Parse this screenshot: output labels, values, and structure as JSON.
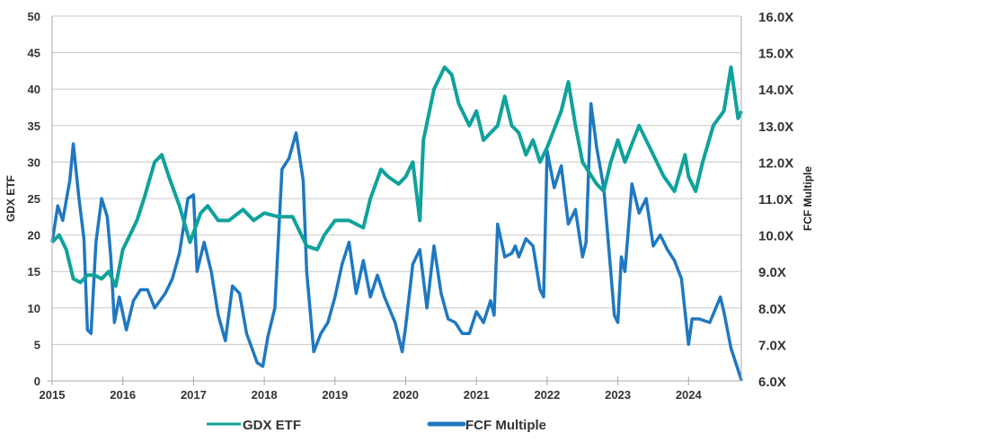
{
  "chart_data": {
    "type": "line",
    "title": "",
    "xlabel": "",
    "ylabel": "GDX ETF",
    "y2label": "FCF Multiple",
    "xlim": [
      2015,
      2024.8
    ],
    "ylim": [
      0,
      50
    ],
    "y2lim": [
      6,
      16
    ],
    "x_ticks": [
      "2015",
      "2016",
      "2017",
      "2018",
      "2019",
      "2020",
      "2021",
      "2022",
      "2023",
      "2024"
    ],
    "y_ticks": [
      "0",
      "5",
      "10",
      "15",
      "20",
      "25",
      "30",
      "35",
      "40",
      "45",
      "50"
    ],
    "y2_ticks": [
      "6.0X",
      "7.0X",
      "8.0X",
      "9.0X",
      "10.0X",
      "11.0X",
      "12.0X",
      "13.0X",
      "14.0X",
      "15.0X",
      "16.0X"
    ],
    "grid": true,
    "legend_position": "bottom",
    "series": [
      {
        "name": "GDX ETF",
        "axis": "left",
        "color": "#0fa29b",
        "x": [
          2015.0,
          2015.1,
          2015.2,
          2015.3,
          2015.4,
          2015.5,
          2015.6,
          2015.7,
          2015.8,
          2015.9,
          2016.0,
          2016.1,
          2016.2,
          2016.3,
          2016.45,
          2016.55,
          2016.65,
          2016.8,
          2016.95,
          2017.1,
          2017.2,
          2017.35,
          2017.5,
          2017.7,
          2017.85,
          2018.0,
          2018.2,
          2018.4,
          2018.6,
          2018.75,
          2018.85,
          2019.0,
          2019.2,
          2019.4,
          2019.5,
          2019.65,
          2019.75,
          2019.9,
          2020.0,
          2020.1,
          2020.2,
          2020.25,
          2020.4,
          2020.55,
          2020.65,
          2020.75,
          2020.9,
          2021.0,
          2021.1,
          2021.3,
          2021.4,
          2021.5,
          2021.6,
          2021.7,
          2021.8,
          2021.9,
          2022.0,
          2022.2,
          2022.3,
          2022.4,
          2022.5,
          2022.7,
          2022.8,
          2022.9,
          2023.0,
          2023.1,
          2023.3,
          2023.5,
          2023.65,
          2023.8,
          2023.95,
          2024.0,
          2024.1,
          2024.2,
          2024.35,
          2024.5,
          2024.6,
          2024.7,
          2024.75
        ],
        "values": [
          19,
          20,
          18,
          14,
          13.5,
          14.5,
          14.5,
          14,
          15,
          13,
          18,
          20,
          22,
          25,
          30,
          31,
          28,
          24,
          19,
          23,
          24,
          22,
          22,
          23.5,
          22,
          23,
          22.5,
          22.5,
          18.5,
          18,
          20,
          22,
          22,
          21,
          25,
          29,
          28,
          27,
          28,
          30,
          22,
          33,
          40,
          43,
          42,
          38,
          35,
          37,
          33,
          35,
          39,
          35,
          34,
          31,
          33,
          30,
          32,
          37,
          41,
          35,
          30,
          27,
          26,
          30,
          33,
          30,
          35,
          31,
          28,
          26,
          31,
          28,
          26,
          30,
          35,
          37,
          43,
          36,
          37
        ]
      },
      {
        "name": "FCF Multiple",
        "axis": "right",
        "color": "#1f78c1",
        "x": [
          2015.0,
          2015.08,
          2015.15,
          2015.25,
          2015.3,
          2015.38,
          2015.45,
          2015.5,
          2015.55,
          2015.62,
          2015.7,
          2015.78,
          2015.83,
          2015.88,
          2015.95,
          2016.05,
          2016.15,
          2016.25,
          2016.35,
          2016.45,
          2016.6,
          2016.7,
          2016.8,
          2016.92,
          2017.0,
          2017.05,
          2017.15,
          2017.25,
          2017.35,
          2017.45,
          2017.55,
          2017.65,
          2017.75,
          2017.9,
          2017.98,
          2018.05,
          2018.15,
          2018.25,
          2018.35,
          2018.45,
          2018.55,
          2018.6,
          2018.7,
          2018.8,
          2018.9,
          2019.0,
          2019.1,
          2019.2,
          2019.3,
          2019.4,
          2019.5,
          2019.6,
          2019.7,
          2019.85,
          2019.95,
          2020.0,
          2020.1,
          2020.2,
          2020.3,
          2020.4,
          2020.5,
          2020.6,
          2020.7,
          2020.8,
          2020.9,
          2021.0,
          2021.1,
          2021.2,
          2021.25,
          2021.3,
          2021.4,
          2021.5,
          2021.55,
          2021.6,
          2021.7,
          2021.8,
          2021.9,
          2021.95,
          2022.0,
          2022.1,
          2022.2,
          2022.3,
          2022.4,
          2022.5,
          2022.55,
          2022.62,
          2022.7,
          2022.8,
          2022.9,
          2022.95,
          2023.0,
          2023.05,
          2023.1,
          2023.2,
          2023.3,
          2023.4,
          2023.5,
          2023.6,
          2023.7,
          2023.8,
          2023.9,
          2024.0,
          2024.05,
          2024.15,
          2024.3,
          2024.45,
          2024.5,
          2024.6,
          2024.7,
          2024.75
        ],
        "values": [
          9.8,
          10.8,
          10.4,
          11.5,
          12.5,
          11,
          9.9,
          7.4,
          7.3,
          9.8,
          11,
          10.5,
          9.4,
          7.6,
          8.3,
          7.4,
          8.2,
          8.5,
          8.5,
          8.0,
          8.4,
          8.8,
          9.5,
          11,
          11.1,
          9,
          9.8,
          9,
          7.8,
          7.1,
          8.6,
          8.4,
          7.3,
          6.5,
          6.4,
          7.2,
          8.0,
          11.8,
          12.1,
          12.8,
          11.5,
          9,
          6.8,
          7.3,
          7.6,
          8.3,
          9.2,
          9.8,
          8.4,
          9.3,
          8.3,
          8.9,
          8.3,
          7.6,
          6.8,
          7.5,
          9.2,
          9.6,
          8,
          9.7,
          8.4,
          7.7,
          7.6,
          7.3,
          7.3,
          7.9,
          7.6,
          8.2,
          7.8,
          10.3,
          9.4,
          9.5,
          9.7,
          9.4,
          9.9,
          9.7,
          8.5,
          8.3,
          12.3,
          11.3,
          11.9,
          10.3,
          10.7,
          9.4,
          9.8,
          13.6,
          12.4,
          11.3,
          9,
          7.8,
          7.6,
          9.4,
          9,
          11.4,
          10.6,
          11,
          9.7,
          10,
          9.6,
          9.3,
          8.8,
          7,
          7.7,
          7.7,
          7.6,
          8.3,
          7.9,
          6.9,
          6.3,
          6.0
        ]
      }
    ]
  }
}
